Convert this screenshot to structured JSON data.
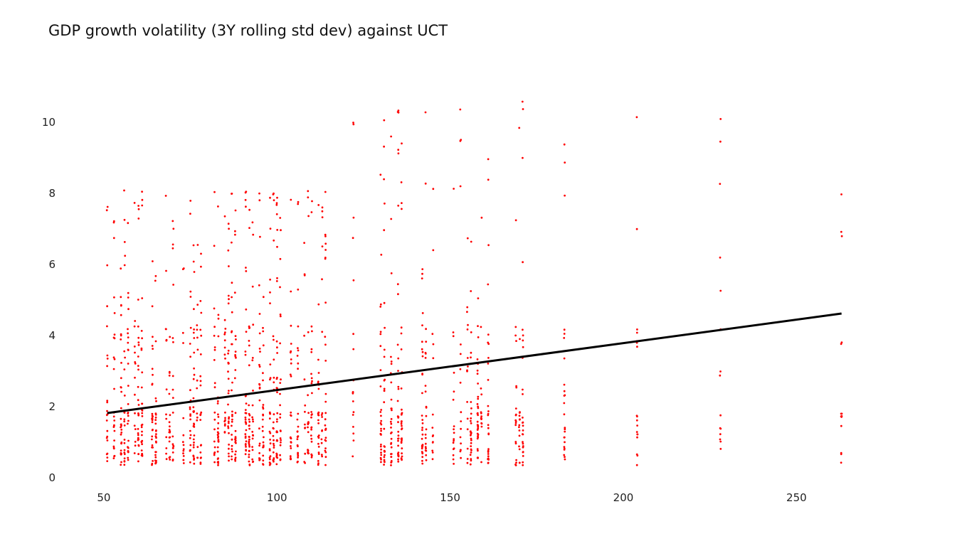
{
  "chart_data": {
    "type": "scatter",
    "title": "GDP growth volatility (3Y rolling std dev) against UCT",
    "xlabel": "",
    "ylabel": "",
    "xlim": [
      34,
      283
    ],
    "ylim": [
      -0.2,
      11.3
    ],
    "xticks": [
      50,
      100,
      150,
      200,
      250
    ],
    "yticks": [
      0,
      2,
      4,
      6,
      8,
      10
    ],
    "grid": false,
    "legend": "none",
    "point_color": "#ff0000",
    "line_color": "#000000",
    "x_columns": [
      51,
      53,
      55,
      56,
      57,
      59,
      60,
      61,
      64,
      65,
      68,
      69,
      70,
      73,
      75,
      76,
      77,
      78,
      82,
      83,
      85,
      86,
      87,
      88,
      91,
      92,
      93,
      95,
      96,
      98,
      99,
      100,
      101,
      104,
      106,
      108,
      109,
      110,
      112,
      113,
      114,
      122,
      130,
      131,
      133,
      135,
      136,
      142,
      143,
      145,
      151,
      153,
      155,
      156,
      158,
      159,
      161,
      169,
      170,
      171,
      183,
      204,
      228,
      263
    ],
    "y_clusters": [
      [
        0.8,
        0.6
      ],
      [
        1.0,
        2.5
      ],
      [
        1.8,
        3.5
      ],
      [
        2.3,
        4.5
      ],
      [
        0.7,
        0.5
      ],
      [
        1.5,
        2.8
      ],
      [
        3.2,
        5.5
      ],
      [
        4.8,
        6.8
      ]
    ],
    "trend_line": {
      "x": [
        51,
        263
      ],
      "y": [
        1.82,
        4.62
      ]
    }
  }
}
